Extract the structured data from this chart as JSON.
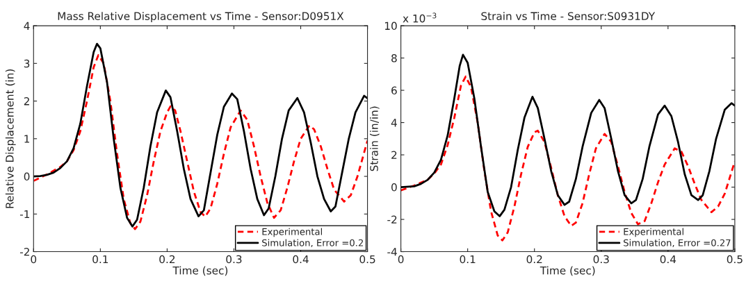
{
  "chart_data": [
    {
      "type": "line",
      "title": "Mass Relative Displacement vs Time - Sensor:D0951X",
      "xlabel": "Time (sec)",
      "ylabel": "Relative Displacement (in)",
      "xlim": [
        0,
        0.5
      ],
      "xticks": [
        0,
        0.1,
        0.2,
        0.3,
        0.4,
        0.5
      ],
      "ylim": [
        -2,
        4
      ],
      "yticks": [
        -2,
        -1,
        0,
        1,
        2,
        3,
        4
      ],
      "grid": false,
      "legend": "bottom right",
      "series": [
        {
          "name": "Experimental",
          "color": "#ff0000",
          "line_style": "dashed",
          "x": [
            0,
            0.02,
            0.04,
            0.05,
            0.06,
            0.07,
            0.08,
            0.09,
            0.097,
            0.105,
            0.115,
            0.125,
            0.135,
            0.145,
            0.152,
            0.16,
            0.17,
            0.18,
            0.19,
            0.2,
            0.205,
            0.212,
            0.22,
            0.23,
            0.24,
            0.25,
            0.257,
            0.265,
            0.275,
            0.285,
            0.295,
            0.31,
            0.32,
            0.33,
            0.34,
            0.35,
            0.36,
            0.37,
            0.38,
            0.39,
            0.4,
            0.413,
            0.42,
            0.43,
            0.44,
            0.45,
            0.465,
            0.475,
            0.485,
            0.5
          ],
          "values": [
            -0.12,
            0.05,
            0.25,
            0.4,
            0.7,
            1.2,
            2.0,
            2.9,
            3.22,
            3.0,
            2.0,
            0.6,
            -0.6,
            -1.25,
            -1.4,
            -1.2,
            -0.5,
            0.4,
            1.2,
            1.7,
            1.86,
            1.75,
            1.2,
            0.4,
            -0.4,
            -0.95,
            -1.07,
            -0.85,
            -0.2,
            0.6,
            1.3,
            1.75,
            1.5,
            0.8,
            0,
            -0.7,
            -1.1,
            -0.9,
            -0.3,
            0.4,
            1.0,
            1.35,
            1.25,
            0.8,
            0.2,
            -0.35,
            -0.67,
            -0.5,
            0,
            0.95
          ]
        },
        {
          "name": "Simulation, Error =0.2",
          "color": "#000000",
          "line_style": "solid",
          "x": [
            0,
            0.01,
            0.02,
            0.03,
            0.04,
            0.05,
            0.06,
            0.07,
            0.08,
            0.09,
            0.095,
            0.1,
            0.11,
            0.12,
            0.13,
            0.14,
            0.148,
            0.155,
            0.165,
            0.175,
            0.185,
            0.198,
            0.205,
            0.215,
            0.225,
            0.235,
            0.247,
            0.255,
            0.265,
            0.275,
            0.285,
            0.297,
            0.305,
            0.315,
            0.325,
            0.335,
            0.345,
            0.352,
            0.362,
            0.372,
            0.382,
            0.395,
            0.405,
            0.415,
            0.425,
            0.435,
            0.445,
            0.452,
            0.462,
            0.472,
            0.482,
            0.495,
            0.5
          ],
          "values": [
            0,
            0.01,
            0.04,
            0.1,
            0.22,
            0.4,
            0.75,
            1.4,
            2.4,
            3.3,
            3.52,
            3.4,
            2.5,
            1.0,
            -0.3,
            -1.1,
            -1.33,
            -1.15,
            -0.3,
            0.8,
            1.7,
            2.28,
            2.1,
            1.2,
            0.2,
            -0.6,
            -1.06,
            -0.9,
            0.1,
            1.1,
            1.85,
            2.2,
            2.05,
            1.2,
            0.2,
            -0.6,
            -1.03,
            -0.85,
            0,
            1.0,
            1.75,
            2.08,
            1.7,
            0.9,
            0,
            -0.6,
            -0.93,
            -0.8,
            0.1,
            1.0,
            1.7,
            2.14,
            2.07
          ]
        }
      ]
    },
    {
      "type": "line",
      "title": "Strain vs Time - Sensor:S0931DY",
      "xlabel": "Time (sec)",
      "ylabel": "Strain (in/in)",
      "annotations": [
        "x 10$^{−3}$"
      ],
      "xlim": [
        0,
        0.5
      ],
      "xticks": [
        0,
        0.1,
        0.2,
        0.3,
        0.4,
        0.5
      ],
      "ylim": [
        -4,
        10
      ],
      "yticks": [
        -4,
        -2,
        0,
        2,
        4,
        6,
        8,
        10
      ],
      "grid": false,
      "legend": "bottom right",
      "series": [
        {
          "name": "Experimental",
          "color": "#ff0000",
          "line_style": "dashed",
          "x": [
            0,
            0.02,
            0.04,
            0.05,
            0.06,
            0.07,
            0.08,
            0.09,
            0.097,
            0.105,
            0.115,
            0.125,
            0.135,
            0.145,
            0.152,
            0.16,
            0.17,
            0.18,
            0.19,
            0.2,
            0.205,
            0.215,
            0.225,
            0.235,
            0.245,
            0.255,
            0.262,
            0.272,
            0.282,
            0.292,
            0.305,
            0.315,
            0.325,
            0.335,
            0.345,
            0.355,
            0.365,
            0.375,
            0.385,
            0.395,
            0.41,
            0.42,
            0.43,
            0.44,
            0.45,
            0.465,
            0.475,
            0.485,
            0.5
          ],
          "values": [
            -0.2,
            0.1,
            0.45,
            0.85,
            1.4,
            2.6,
            4.3,
            6.3,
            6.85,
            6.2,
            4.0,
            1.0,
            -1.5,
            -3.0,
            -3.3,
            -2.8,
            -1.2,
            0.8,
            2.5,
            3.4,
            3.5,
            2.8,
            1.2,
            -0.5,
            -1.8,
            -2.4,
            -2.2,
            -1.0,
            0.8,
            2.4,
            3.3,
            2.8,
            1.3,
            -0.3,
            -1.6,
            -2.3,
            -2.1,
            -1.0,
            0.3,
            1.4,
            2.4,
            2.2,
            1.3,
            0.2,
            -0.8,
            -1.55,
            -1.2,
            -0.4,
            1.6
          ]
        },
        {
          "name": "Simulation, Error =0.27",
          "color": "#000000",
          "line_style": "solid",
          "x": [
            0,
            0.02,
            0.03,
            0.04,
            0.05,
            0.06,
            0.07,
            0.08,
            0.088,
            0.093,
            0.1,
            0.11,
            0.12,
            0.13,
            0.14,
            0.148,
            0.155,
            0.165,
            0.175,
            0.185,
            0.197,
            0.205,
            0.215,
            0.225,
            0.235,
            0.245,
            0.252,
            0.262,
            0.272,
            0.285,
            0.297,
            0.305,
            0.315,
            0.325,
            0.335,
            0.345,
            0.352,
            0.362,
            0.372,
            0.385,
            0.395,
            0.405,
            0.415,
            0.425,
            0.435,
            0.445,
            0.452,
            0.462,
            0.472,
            0.485,
            0.495,
            0.5
          ],
          "values": [
            0,
            0.05,
            0.2,
            0.45,
            0.9,
            1.7,
            3.2,
            5.5,
            7.5,
            8.2,
            7.7,
            5.5,
            2.5,
            -0.3,
            -1.5,
            -1.8,
            -1.4,
            0,
            2.3,
            4.3,
            5.6,
            4.9,
            3.0,
            1.0,
            -0.5,
            -1.1,
            -0.9,
            0.5,
            2.5,
            4.6,
            5.4,
            4.9,
            3.0,
            1.0,
            -0.5,
            -1.0,
            -0.8,
            0.5,
            2.5,
            4.5,
            5.05,
            4.4,
            2.8,
            0.8,
            -0.5,
            -0.8,
            -0.5,
            1.0,
            3.0,
            4.8,
            5.2,
            5.05
          ]
        }
      ]
    }
  ]
}
